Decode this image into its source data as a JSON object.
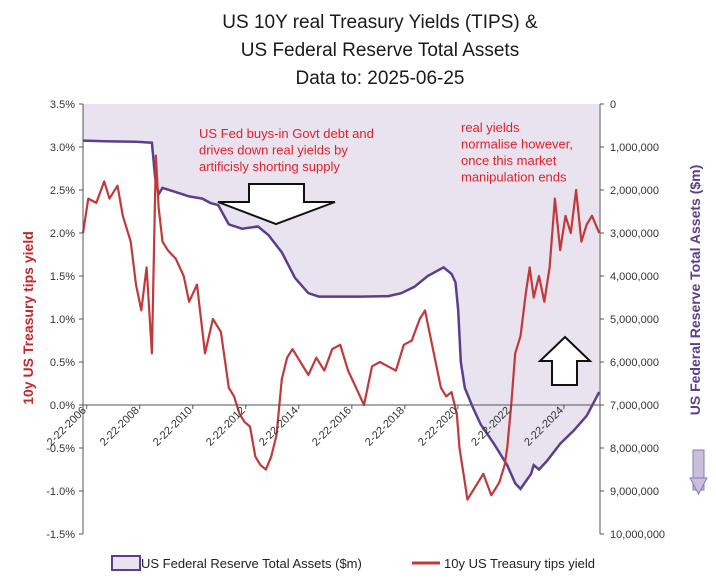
{
  "chart_data": {
    "type": "line",
    "title": [
      "US 10Y real Treasury Yields (TIPS) &",
      "US Federal Reserve Total Assets",
      "Data to: 2025-06-25"
    ],
    "ylabel_left": "10y US Treasury tips yield",
    "ylabel_right": "US Federal Reserve Total Assets ($m)",
    "ylim_left": [
      -1.5,
      3.5
    ],
    "ylim_right_inverted": [
      0,
      10000000
    ],
    "xlim": [
      2006.0,
      2025.5
    ],
    "left_ticks": [
      "3.5%",
      "3.0%",
      "2.5%",
      "2.0%",
      "1.5%",
      "1.0%",
      "0.5%",
      "0.0%",
      "-0.5%",
      "-1.0%",
      "-1.5%"
    ],
    "right_ticks": [
      "0",
      "1,000,000",
      "2,000,000",
      "3,000,000",
      "4,000,000",
      "5,000,000",
      "6,000,000",
      "7,000,000",
      "8,000,000",
      "9,000,000",
      "10,000,000"
    ],
    "x_ticks": [
      "2-22-2006",
      "2-22-2008",
      "2-22-2010",
      "2-22-2012",
      "2-22-2014",
      "2-22-2016",
      "2-22-2018",
      "2-22-2020",
      "2-22-2022",
      "2-22-2024"
    ],
    "grid": false,
    "legend_position": "bottom",
    "annotations": [
      {
        "lines": [
          "US Fed buys-in Govt debt and",
          "drives down real yields by",
          "artificisly shorting supply"
        ]
      },
      {
        "lines": [
          "real yields",
          "normalise however,",
          "once this market",
          "manipulation ends"
        ]
      }
    ],
    "series": [
      {
        "name": "US Federal Reserve Total Assets ($m)",
        "axis": "right",
        "color": "#5b3f8c",
        "fill": "#e9e3ef",
        "x": [
          2006.0,
          2007.0,
          2008.0,
          2008.6,
          2008.72,
          2008.85,
          2009.0,
          2009.5,
          2010.0,
          2010.5,
          2010.8,
          2011.1,
          2011.5,
          2012.0,
          2012.6,
          2013.0,
          2013.5,
          2014.0,
          2014.5,
          2014.9,
          2015.5,
          2016.5,
          2017.5,
          2018.0,
          2018.5,
          2019.0,
          2019.6,
          2019.9,
          2020.05,
          2020.15,
          2020.25,
          2020.4,
          2020.7,
          2021.0,
          2021.5,
          2022.0,
          2022.3,
          2022.5,
          2022.9,
          2023.0,
          2023.2,
          2023.5,
          2024.0,
          2024.5,
          2025.0,
          2025.47
        ],
        "y": [
          850000,
          870000,
          880000,
          900000,
          1700000,
          2100000,
          1950000,
          2050000,
          2150000,
          2200000,
          2300000,
          2350000,
          2800000,
          2900000,
          2850000,
          3050000,
          3450000,
          4050000,
          4400000,
          4480000,
          4480000,
          4480000,
          4470000,
          4400000,
          4250000,
          4000000,
          3800000,
          3950000,
          4150000,
          4800000,
          6000000,
          6600000,
          7050000,
          7450000,
          7900000,
          8400000,
          8820000,
          8950000,
          8600000,
          8400000,
          8500000,
          8300000,
          7900000,
          7600000,
          7250000,
          6700000
        ]
      },
      {
        "name": "10y US Treasury tips yield",
        "axis": "left",
        "color": "#c0393b",
        "x": [
          2006.0,
          2006.2,
          2006.5,
          2006.8,
          2007.0,
          2007.3,
          2007.5,
          2007.8,
          2008.0,
          2008.2,
          2008.4,
          2008.6,
          2008.75,
          2008.85,
          2009.0,
          2009.2,
          2009.5,
          2009.8,
          2010.0,
          2010.3,
          2010.6,
          2010.9,
          2011.2,
          2011.5,
          2011.7,
          2011.9,
          2012.1,
          2012.3,
          2012.5,
          2012.7,
          2012.9,
          2013.1,
          2013.3,
          2013.5,
          2013.7,
          2013.9,
          2014.2,
          2014.5,
          2014.8,
          2015.1,
          2015.4,
          2015.7,
          2016.0,
          2016.3,
          2016.6,
          2016.9,
          2017.2,
          2017.5,
          2017.8,
          2018.1,
          2018.4,
          2018.7,
          2018.9,
          2019.1,
          2019.3,
          2019.5,
          2019.7,
          2019.9,
          2020.1,
          2020.2,
          2020.35,
          2020.5,
          2020.7,
          2020.9,
          2021.1,
          2021.4,
          2021.7,
          2021.9,
          2022.0,
          2022.15,
          2022.3,
          2022.5,
          2022.7,
          2022.85,
          2023.0,
          2023.2,
          2023.4,
          2023.6,
          2023.8,
          2024.0,
          2024.2,
          2024.4,
          2024.6,
          2024.8,
          2025.0,
          2025.2,
          2025.47
        ],
        "y": [
          2.0,
          2.4,
          2.35,
          2.6,
          2.4,
          2.55,
          2.2,
          1.9,
          1.4,
          1.1,
          1.6,
          0.6,
          2.9,
          2.3,
          1.9,
          1.8,
          1.7,
          1.5,
          1.2,
          1.4,
          0.6,
          1.0,
          0.85,
          0.2,
          0.1,
          -0.1,
          -0.2,
          -0.25,
          -0.6,
          -0.7,
          -0.75,
          -0.6,
          -0.35,
          0.3,
          0.55,
          0.65,
          0.5,
          0.35,
          0.55,
          0.4,
          0.65,
          0.7,
          0.4,
          0.2,
          0.0,
          0.45,
          0.5,
          0.45,
          0.4,
          0.7,
          0.75,
          1.0,
          1.1,
          0.8,
          0.5,
          0.2,
          0.1,
          0.15,
          -0.1,
          -0.5,
          -0.8,
          -1.1,
          -1.0,
          -0.9,
          -0.8,
          -1.05,
          -0.9,
          -0.7,
          -0.5,
          0.0,
          0.6,
          0.8,
          1.3,
          1.6,
          1.25,
          1.5,
          1.2,
          1.6,
          2.4,
          1.8,
          2.2,
          2.0,
          2.5,
          1.9,
          2.1,
          2.2,
          2.0
        ]
      }
    ]
  }
}
